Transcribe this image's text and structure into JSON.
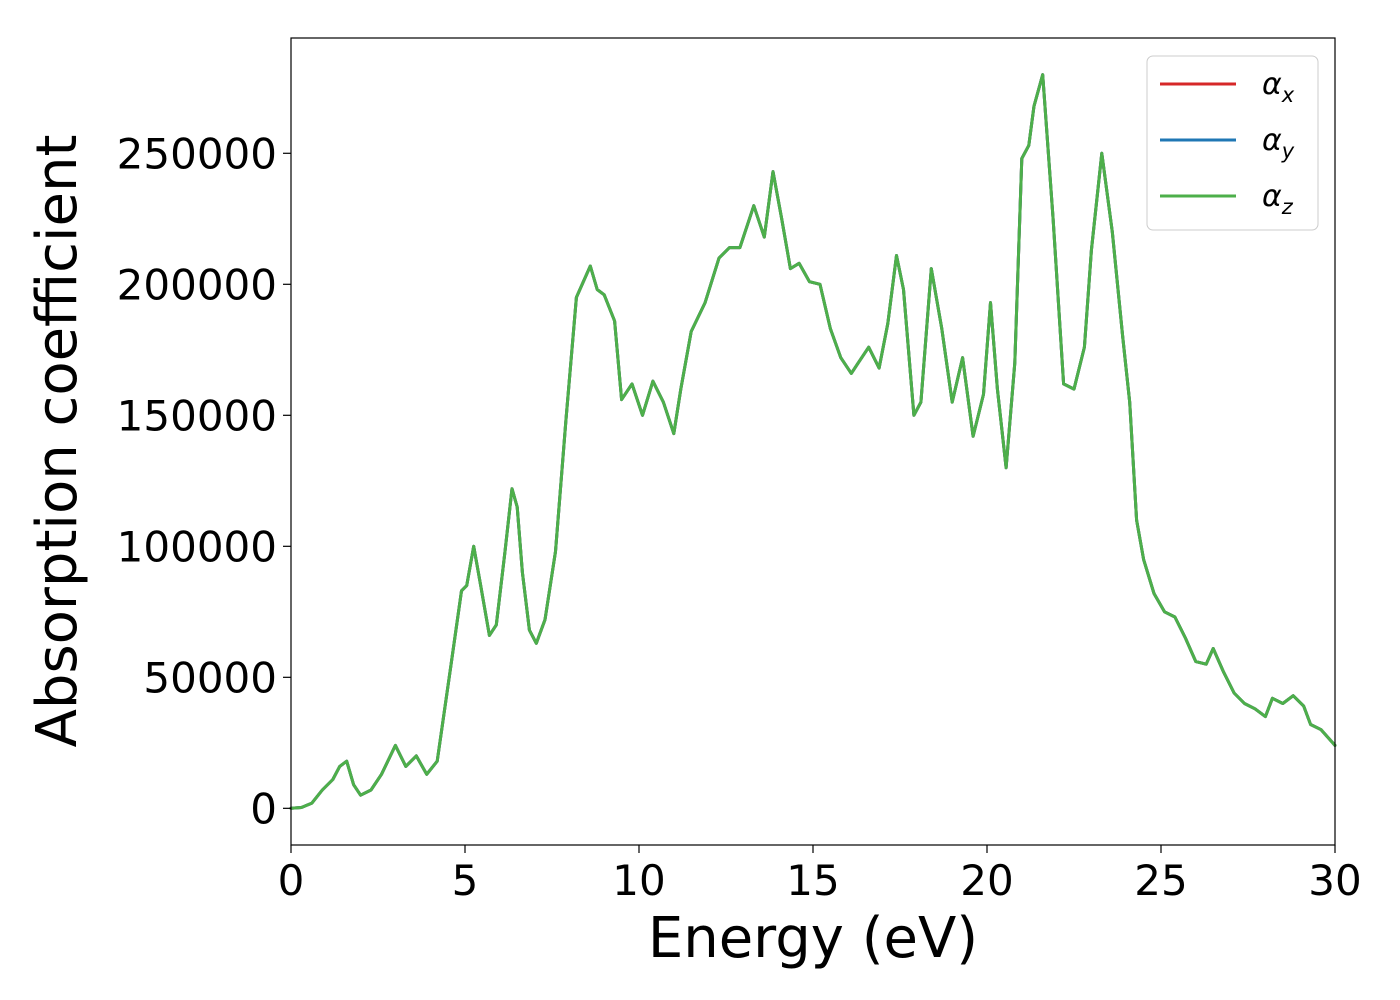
{
  "chart_data": {
    "type": "line",
    "title": "",
    "xlabel": "Energy (eV)",
    "ylabel": "Absorption coefficient",
    "xlim": [
      0,
      30
    ],
    "ylim": [
      -14000,
      294000
    ],
    "xticks": [
      "0",
      "5",
      "10",
      "15",
      "20",
      "25",
      "30"
    ],
    "yticks": [
      "0",
      "50000",
      "100000",
      "150000",
      "200000",
      "250000"
    ],
    "grid": false,
    "legend_position": "top-right",
    "series": [
      {
        "name": "α",
        "subscript": "x",
        "color": "#d62728"
      },
      {
        "name": "α",
        "subscript": "y",
        "color": "#1f77b4"
      },
      {
        "name": "α",
        "subscript": "z",
        "color": "#4daf4a"
      }
    ],
    "x": [
      0,
      0.3,
      0.6,
      0.9,
      1.2,
      1.4,
      1.6,
      1.8,
      2.0,
      2.3,
      2.6,
      3.0,
      3.3,
      3.6,
      3.9,
      4.2,
      4.6,
      4.9,
      5.05,
      5.25,
      5.45,
      5.7,
      5.9,
      6.15,
      6.35,
      6.5,
      6.65,
      6.85,
      7.05,
      7.3,
      7.6,
      7.9,
      8.2,
      8.6,
      8.8,
      9.0,
      9.3,
      9.5,
      9.8,
      10.1,
      10.4,
      10.7,
      11.0,
      11.2,
      11.5,
      11.9,
      12.3,
      12.6,
      12.9,
      13.3,
      13.6,
      13.85,
      14.1,
      14.35,
      14.6,
      14.9,
      15.2,
      15.5,
      15.8,
      16.1,
      16.3,
      16.6,
      16.9,
      17.15,
      17.4,
      17.6,
      17.9,
      18.1,
      18.4,
      18.7,
      19.0,
      19.3,
      19.6,
      19.9,
      20.1,
      20.3,
      20.55,
      20.8,
      21.0,
      21.2,
      21.35,
      21.6,
      21.9,
      22.2,
      22.5,
      22.8,
      23.0,
      23.3,
      23.6,
      23.9,
      24.1,
      24.3,
      24.5,
      24.8,
      25.1,
      25.4,
      25.7,
      26.0,
      26.3,
      26.5,
      26.8,
      27.1,
      27.4,
      27.7,
      28.0,
      28.2,
      28.5,
      28.8,
      29.1,
      29.3,
      29.6,
      30.0
    ],
    "y": [
      0,
      300,
      2000,
      7000,
      11000,
      16000,
      18000,
      9000,
      5000,
      7000,
      13000,
      24000,
      16000,
      20000,
      13000,
      18000,
      55000,
      83000,
      85000,
      100000,
      85000,
      66000,
      70000,
      98000,
      122000,
      115000,
      90000,
      68000,
      63000,
      72000,
      98000,
      148000,
      195000,
      207000,
      198000,
      196000,
      186000,
      156000,
      162000,
      150000,
      163000,
      155000,
      143000,
      160000,
      182000,
      193000,
      210000,
      214000,
      214000,
      230000,
      218000,
      243000,
      225000,
      206000,
      208000,
      201000,
      200000,
      183000,
      172000,
      166000,
      170000,
      176000,
      168000,
      185000,
      211000,
      198000,
      150000,
      155000,
      206000,
      183000,
      155000,
      172000,
      142000,
      158000,
      193000,
      160000,
      130000,
      170000,
      248000,
      253000,
      268000,
      280000,
      225000,
      162000,
      160000,
      176000,
      213000,
      250000,
      220000,
      180000,
      155000,
      110000,
      95000,
      82000,
      75000,
      73000,
      65000,
      56000,
      55000,
      61000,
      52000,
      44000,
      40000,
      38000,
      35000,
      42000,
      40000,
      43000,
      39000,
      32000,
      30000,
      24000
    ]
  }
}
